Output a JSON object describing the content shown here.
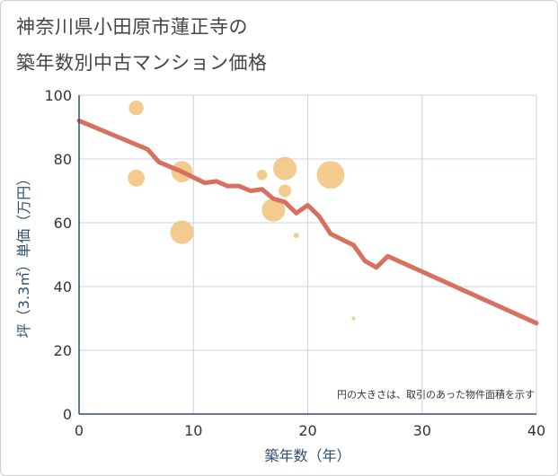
{
  "title_line1": "神奈川県小田原市蓮正寺の",
  "title_line2": "築年数別中古マンション価格",
  "chart_data": {
    "type": "scatter+line",
    "xlabel": "築年数（年）",
    "ylabel": "坪（3.3㎡）単価（万円）",
    "xlim": [
      0,
      40
    ],
    "ylim": [
      0,
      100
    ],
    "xticks": [
      0,
      10,
      20,
      30,
      40
    ],
    "yticks": [
      0,
      20,
      40,
      60,
      80,
      100
    ],
    "grid": true,
    "note": "円の大きさは、取引のあった物件面積を示す",
    "bubbles": [
      {
        "x": 5,
        "y": 96,
        "size": 3
      },
      {
        "x": 5,
        "y": 74,
        "size": 3.5
      },
      {
        "x": 9,
        "y": 76,
        "size": 4.5
      },
      {
        "x": 9,
        "y": 57,
        "size": 5
      },
      {
        "x": 16,
        "y": 75,
        "size": 2
      },
      {
        "x": 17,
        "y": 64,
        "size": 5
      },
      {
        "x": 18,
        "y": 77,
        "size": 5
      },
      {
        "x": 18,
        "y": 70,
        "size": 2.5
      },
      {
        "x": 19,
        "y": 56,
        "size": 0.8
      },
      {
        "x": 22,
        "y": 75,
        "size": 6
      },
      {
        "x": 24,
        "y": 30,
        "size": 0.4
      }
    ],
    "trend": {
      "x": [
        0,
        3,
        6,
        7,
        9,
        11,
        12,
        13,
        14,
        15,
        16,
        17,
        18,
        19,
        20,
        21,
        22,
        24,
        25,
        26,
        27,
        40
      ],
      "y": [
        92,
        87.5,
        83,
        79,
        76,
        72.5,
        73,
        71.5,
        71.5,
        70,
        70.5,
        67.5,
        66.5,
        63,
        65.5,
        62,
        56.5,
        53,
        48,
        46,
        49.5,
        28.5
      ]
    },
    "colors": {
      "bubble": "#f2c27a",
      "trend": "#d6705f",
      "grid": "#c8d4e0",
      "axis": "#2f4f6f"
    }
  }
}
